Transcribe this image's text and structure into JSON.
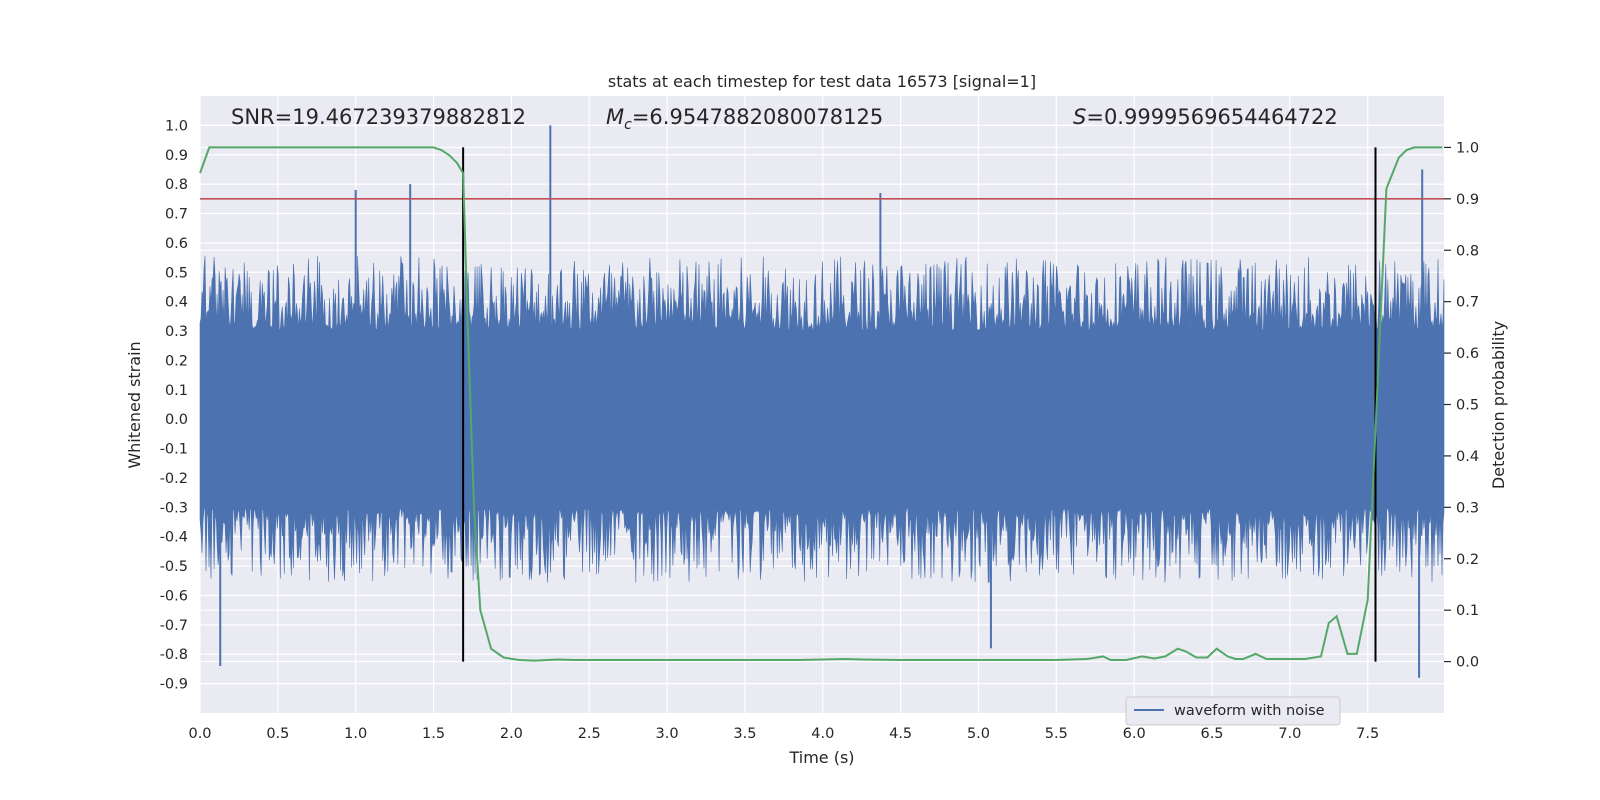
{
  "chart_data": {
    "type": "line",
    "title": "stats at each timestep for test data 16573 [signal=1]",
    "xlabel": "Time (s)",
    "ylabel_left": "Whitened strain",
    "ylabel_right": "Detection probability",
    "xlim": [
      0.0,
      7.99
    ],
    "ylim_left": [
      -1.0,
      1.1
    ],
    "ylim_right": [
      -0.1,
      1.1
    ],
    "x_ticks": [
      0.0,
      0.5,
      1.0,
      1.5,
      2.0,
      2.5,
      3.0,
      3.5,
      4.0,
      4.5,
      5.0,
      5.5,
      6.0,
      6.5,
      7.0,
      7.5
    ],
    "x_tick_labels": [
      "0.0",
      "0.5",
      "1.0",
      "1.5",
      "2.0",
      "2.5",
      "3.0",
      "3.5",
      "4.0",
      "4.5",
      "5.0",
      "5.5",
      "6.0",
      "6.5",
      "7.0",
      "7.5"
    ],
    "y_left_ticks": [
      1.0,
      0.9,
      0.8,
      0.7,
      0.6,
      0.5,
      0.4,
      0.3,
      0.2,
      0.1,
      0.0,
      -0.1,
      -0.2,
      -0.3,
      -0.4,
      -0.5,
      -0.6,
      -0.7,
      -0.8,
      -0.9
    ],
    "y_left_tick_labels": [
      "1.0",
      "0.9",
      "0.8",
      "0.7",
      "0.6",
      "0.5",
      "0.4",
      "0.3",
      "0.2",
      "0.1",
      "0.0",
      "-0.1",
      "-0.2",
      "-0.3",
      "-0.4",
      "-0.5",
      "-0.6",
      "-0.7",
      "-0.8",
      "-0.9"
    ],
    "y_right_ticks": [
      1.0,
      0.9,
      0.8,
      0.7,
      0.6,
      0.5,
      0.4,
      0.3,
      0.2,
      0.1,
      0.0
    ],
    "y_right_tick_labels": [
      "1.0",
      "0.9",
      "0.8",
      "0.7",
      "0.6",
      "0.5",
      "0.4",
      "0.3",
      "0.2",
      "0.1",
      "0.0"
    ],
    "annotations": {
      "snr": "SNR=19.467239379882812",
      "mc_symbol": "M",
      "mc_subscript": "c",
      "mc_value": "=6.9547882080078125",
      "s_symbol": "S",
      "s_value": "=0.9999569654464722"
    },
    "legend": {
      "entries": [
        "waveform with noise"
      ],
      "placement": "lower-right"
    },
    "grid": true,
    "series": [
      {
        "name": "waveform with noise",
        "axis": "left",
        "color": "#4c72b0",
        "envelope_upper": 0.5,
        "envelope_lower": -0.5,
        "core_band": [
          -0.22,
          0.22
        ],
        "notable_peaks": [
          {
            "x": 2.25,
            "y": 1.0
          },
          {
            "x": 0.13,
            "y": -0.84
          },
          {
            "x": 7.85,
            "y": 0.85
          },
          {
            "x": 7.83,
            "y": -0.88
          },
          {
            "x": 5.08,
            "y": -0.78
          },
          {
            "x": 1.0,
            "y": 0.78
          },
          {
            "x": 1.35,
            "y": 0.8
          },
          {
            "x": 4.37,
            "y": 0.77
          }
        ]
      },
      {
        "name": "detection probability",
        "axis": "right",
        "color": "#55a868",
        "x": [
          0.0,
          0.06,
          0.12,
          0.2,
          0.4,
          0.6,
          0.8,
          1.0,
          1.2,
          1.4,
          1.5,
          1.55,
          1.6,
          1.65,
          1.69,
          1.72,
          1.76,
          1.8,
          1.87,
          1.95,
          2.05,
          2.15,
          2.3,
          2.4,
          2.5,
          2.7,
          3.0,
          3.5,
          3.85,
          4.0,
          4.15,
          4.25,
          4.5,
          5.0,
          5.5,
          5.7,
          5.8,
          5.85,
          5.95,
          6.05,
          6.13,
          6.2,
          6.28,
          6.33,
          6.4,
          6.47,
          6.53,
          6.6,
          6.65,
          6.7,
          6.78,
          6.85,
          6.9,
          6.95,
          7.1,
          7.2,
          7.25,
          7.3,
          7.37,
          7.43,
          7.5,
          7.55,
          7.62,
          7.7,
          7.75,
          7.8,
          7.87,
          7.9,
          7.98
        ],
        "y": [
          0.95,
          1.0,
          1.0,
          1.0,
          1.0,
          1.0,
          1.0,
          1.0,
          1.0,
          1.0,
          1.0,
          0.995,
          0.985,
          0.97,
          0.95,
          0.65,
          0.3,
          0.1,
          0.025,
          0.008,
          0.003,
          0.002,
          0.004,
          0.003,
          0.003,
          0.003,
          0.003,
          0.003,
          0.003,
          0.004,
          0.005,
          0.004,
          0.003,
          0.003,
          0.003,
          0.005,
          0.01,
          0.003,
          0.003,
          0.01,
          0.006,
          0.01,
          0.025,
          0.02,
          0.008,
          0.008,
          0.025,
          0.01,
          0.005,
          0.005,
          0.015,
          0.005,
          0.005,
          0.005,
          0.005,
          0.01,
          0.075,
          0.088,
          0.015,
          0.015,
          0.12,
          0.45,
          0.92,
          0.98,
          0.995,
          1.0,
          1.0,
          1.0,
          1.0
        ]
      }
    ],
    "horizontal_line": {
      "axis": "right",
      "y": 0.9,
      "color": "#c44e52"
    },
    "vertical_lines": [
      {
        "x": 1.69,
        "color": "#000000"
      },
      {
        "x": 7.55,
        "color": "#000000"
      }
    ],
    "colors": {
      "axes_bg": "#eaeaf2",
      "grid": "#ffffff",
      "strain": "#4c72b0",
      "probability": "#55a868",
      "threshold": "#c44e52"
    }
  }
}
